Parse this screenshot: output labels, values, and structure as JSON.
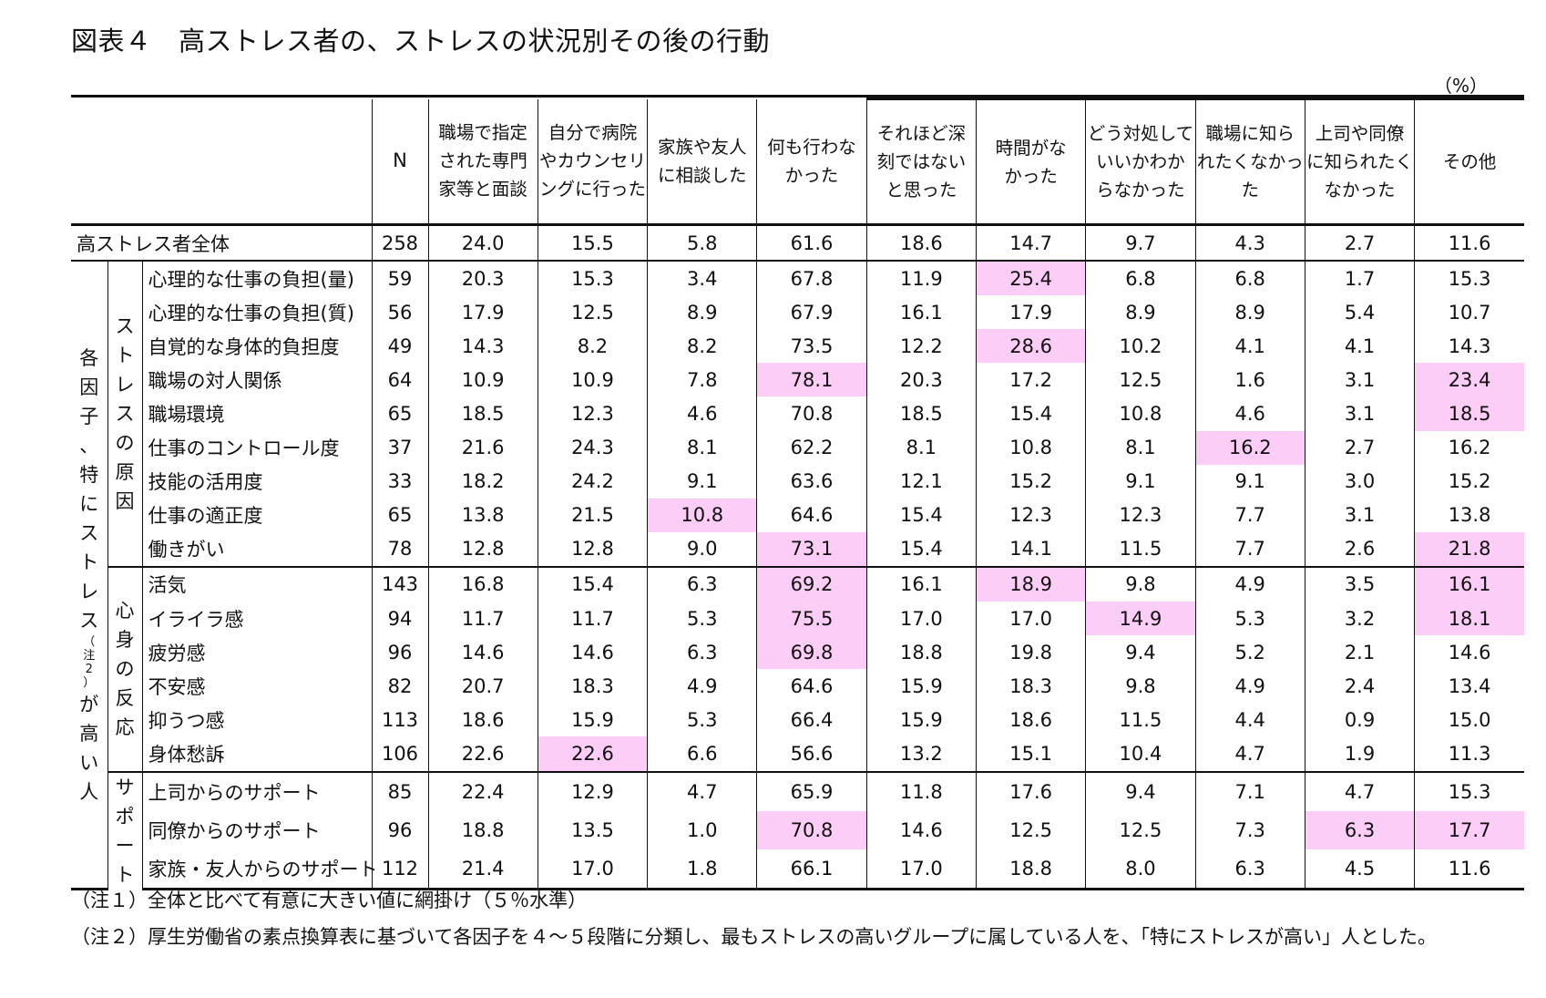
{
  "title": "図表４　高ストレス者の、ストレスの状況別その後の行動",
  "unit": "（%）",
  "columns": {
    "n": "N",
    "c1": [
      "職場で指定",
      "された専門",
      "家等と面談"
    ],
    "c2": [
      "自分で病院",
      "やカウンセリ",
      "ングに行った"
    ],
    "c3": [
      "家族や友人",
      "に相談した"
    ],
    "c4": [
      "何も行わな",
      "かった"
    ],
    "c5": [
      "それほど深",
      "刻ではない",
      "と思った"
    ],
    "c6": [
      "時間がな",
      "かった"
    ],
    "c7": [
      "どう対処して",
      "いいかわか",
      "らなかった"
    ],
    "c8": [
      "職場に知ら",
      "れたくなかっ",
      "た"
    ],
    "c9": [
      "上司や同僚",
      "に知られたく",
      "なかった"
    ],
    "c10": [
      "その他"
    ]
  },
  "total": {
    "label": "高ストレス者全体",
    "n": "258",
    "values": [
      "24.0",
      "15.5",
      "5.8",
      "61.6",
      "18.6",
      "14.7",
      "9.7",
      "4.3",
      "2.7",
      "11.6"
    ]
  },
  "group_outer": {
    "chars_top": [
      "各",
      "因",
      "子",
      "、",
      "特",
      "に",
      "ス",
      "ト",
      "レ",
      "ス"
    ],
    "note_chars": [
      "（",
      "注",
      "2",
      "）"
    ],
    "chars_bottom": [
      "が",
      "高",
      "い",
      "人"
    ]
  },
  "groups": [
    {
      "label_chars": [
        "ス",
        "ト",
        "レ",
        "ス",
        "の",
        "原",
        "因"
      ],
      "rows": [
        {
          "label": "心理的な仕事の負担(量)",
          "n": "59",
          "values": [
            "20.3",
            "15.3",
            "3.4",
            "67.8",
            "11.9",
            "25.4",
            "6.8",
            "6.8",
            "1.7",
            "15.3"
          ],
          "highlight": [
            5
          ]
        },
        {
          "label": "心理的な仕事の負担(質)",
          "n": "56",
          "values": [
            "17.9",
            "12.5",
            "8.9",
            "67.9",
            "16.1",
            "17.9",
            "8.9",
            "8.9",
            "5.4",
            "10.7"
          ],
          "highlight": []
        },
        {
          "label": "自覚的な身体的負担度",
          "n": "49",
          "values": [
            "14.3",
            "8.2",
            "8.2",
            "73.5",
            "12.2",
            "28.6",
            "10.2",
            "4.1",
            "4.1",
            "14.3"
          ],
          "highlight": [
            5
          ]
        },
        {
          "label": "職場の対人関係",
          "n": "64",
          "values": [
            "10.9",
            "10.9",
            "7.8",
            "78.1",
            "20.3",
            "17.2",
            "12.5",
            "1.6",
            "3.1",
            "23.4"
          ],
          "highlight": [
            3,
            9
          ]
        },
        {
          "label": "職場環境",
          "n": "65",
          "values": [
            "18.5",
            "12.3",
            "4.6",
            "70.8",
            "18.5",
            "15.4",
            "10.8",
            "4.6",
            "3.1",
            "18.5"
          ],
          "highlight": [
            9
          ]
        },
        {
          "label": "仕事のコントロール度",
          "n": "37",
          "values": [
            "21.6",
            "24.3",
            "8.1",
            "62.2",
            "8.1",
            "10.8",
            "8.1",
            "16.2",
            "2.7",
            "16.2"
          ],
          "highlight": [
            7
          ]
        },
        {
          "label": "技能の活用度",
          "n": "33",
          "values": [
            "18.2",
            "24.2",
            "9.1",
            "63.6",
            "12.1",
            "15.2",
            "9.1",
            "9.1",
            "3.0",
            "15.2"
          ],
          "highlight": []
        },
        {
          "label": "仕事の適正度",
          "n": "65",
          "values": [
            "13.8",
            "21.5",
            "10.8",
            "64.6",
            "15.4",
            "12.3",
            "12.3",
            "7.7",
            "3.1",
            "13.8"
          ],
          "highlight": [
            2
          ]
        },
        {
          "label": "働きがい",
          "n": "78",
          "values": [
            "12.8",
            "12.8",
            "9.0",
            "73.1",
            "15.4",
            "14.1",
            "11.5",
            "7.7",
            "2.6",
            "21.8"
          ],
          "highlight": [
            3,
            9
          ]
        }
      ]
    },
    {
      "label_chars": [
        "心",
        "身",
        "の",
        "反",
        "応"
      ],
      "rows": [
        {
          "label": "活気",
          "n": "143",
          "values": [
            "16.8",
            "15.4",
            "6.3",
            "69.2",
            "16.1",
            "18.9",
            "9.8",
            "4.9",
            "3.5",
            "16.1"
          ],
          "highlight": [
            3,
            5,
            9
          ]
        },
        {
          "label": "イライラ感",
          "n": "94",
          "values": [
            "11.7",
            "11.7",
            "5.3",
            "75.5",
            "17.0",
            "17.0",
            "14.9",
            "5.3",
            "3.2",
            "18.1"
          ],
          "highlight": [
            3,
            6,
            9
          ]
        },
        {
          "label": "疲労感",
          "n": "96",
          "values": [
            "14.6",
            "14.6",
            "6.3",
            "69.8",
            "18.8",
            "19.8",
            "9.4",
            "5.2",
            "2.1",
            "14.6"
          ],
          "highlight": [
            3
          ]
        },
        {
          "label": "不安感",
          "n": "82",
          "values": [
            "20.7",
            "18.3",
            "4.9",
            "64.6",
            "15.9",
            "18.3",
            "9.8",
            "4.9",
            "2.4",
            "13.4"
          ],
          "highlight": []
        },
        {
          "label": "抑うつ感",
          "n": "113",
          "values": [
            "18.6",
            "15.9",
            "5.3",
            "66.4",
            "15.9",
            "18.6",
            "11.5",
            "4.4",
            "0.9",
            "15.0"
          ],
          "highlight": []
        },
        {
          "label": "身体愁訴",
          "n": "106",
          "values": [
            "22.6",
            "22.6",
            "6.6",
            "56.6",
            "13.2",
            "15.1",
            "10.4",
            "4.7",
            "1.9",
            "11.3"
          ],
          "highlight": [
            1
          ]
        }
      ]
    },
    {
      "label_chars": [
        "サ",
        "ポ",
        "ー",
        "ト"
      ],
      "rows": [
        {
          "label": "上司からのサポート",
          "n": "85",
          "values": [
            "22.4",
            "12.9",
            "4.7",
            "65.9",
            "11.8",
            "17.6",
            "9.4",
            "7.1",
            "4.7",
            "15.3"
          ],
          "highlight": []
        },
        {
          "label": "同僚からのサポート",
          "n": "96",
          "values": [
            "18.8",
            "13.5",
            "1.0",
            "70.8",
            "14.6",
            "12.5",
            "12.5",
            "7.3",
            "6.3",
            "17.7"
          ],
          "highlight": [
            3,
            8,
            9
          ]
        },
        {
          "label": "家族・友人からのサポート",
          "n": "112",
          "values": [
            "21.4",
            "17.0",
            "1.8",
            "66.1",
            "17.0",
            "18.8",
            "8.0",
            "6.3",
            "4.5",
            "11.6"
          ],
          "highlight": []
        }
      ]
    }
  ],
  "notes": [
    "（注１）全体と比べて有意に大きい値に網掛け（５％水準）",
    "（注２）厚生労働省の素点換算表に基づいて各因子を４～５段階に分類し、最もストレスの高いグループに属している人を、「特にストレスが高い」人とした。"
  ],
  "colors": {
    "highlight": "#fccdf6",
    "rule": "#111111"
  }
}
